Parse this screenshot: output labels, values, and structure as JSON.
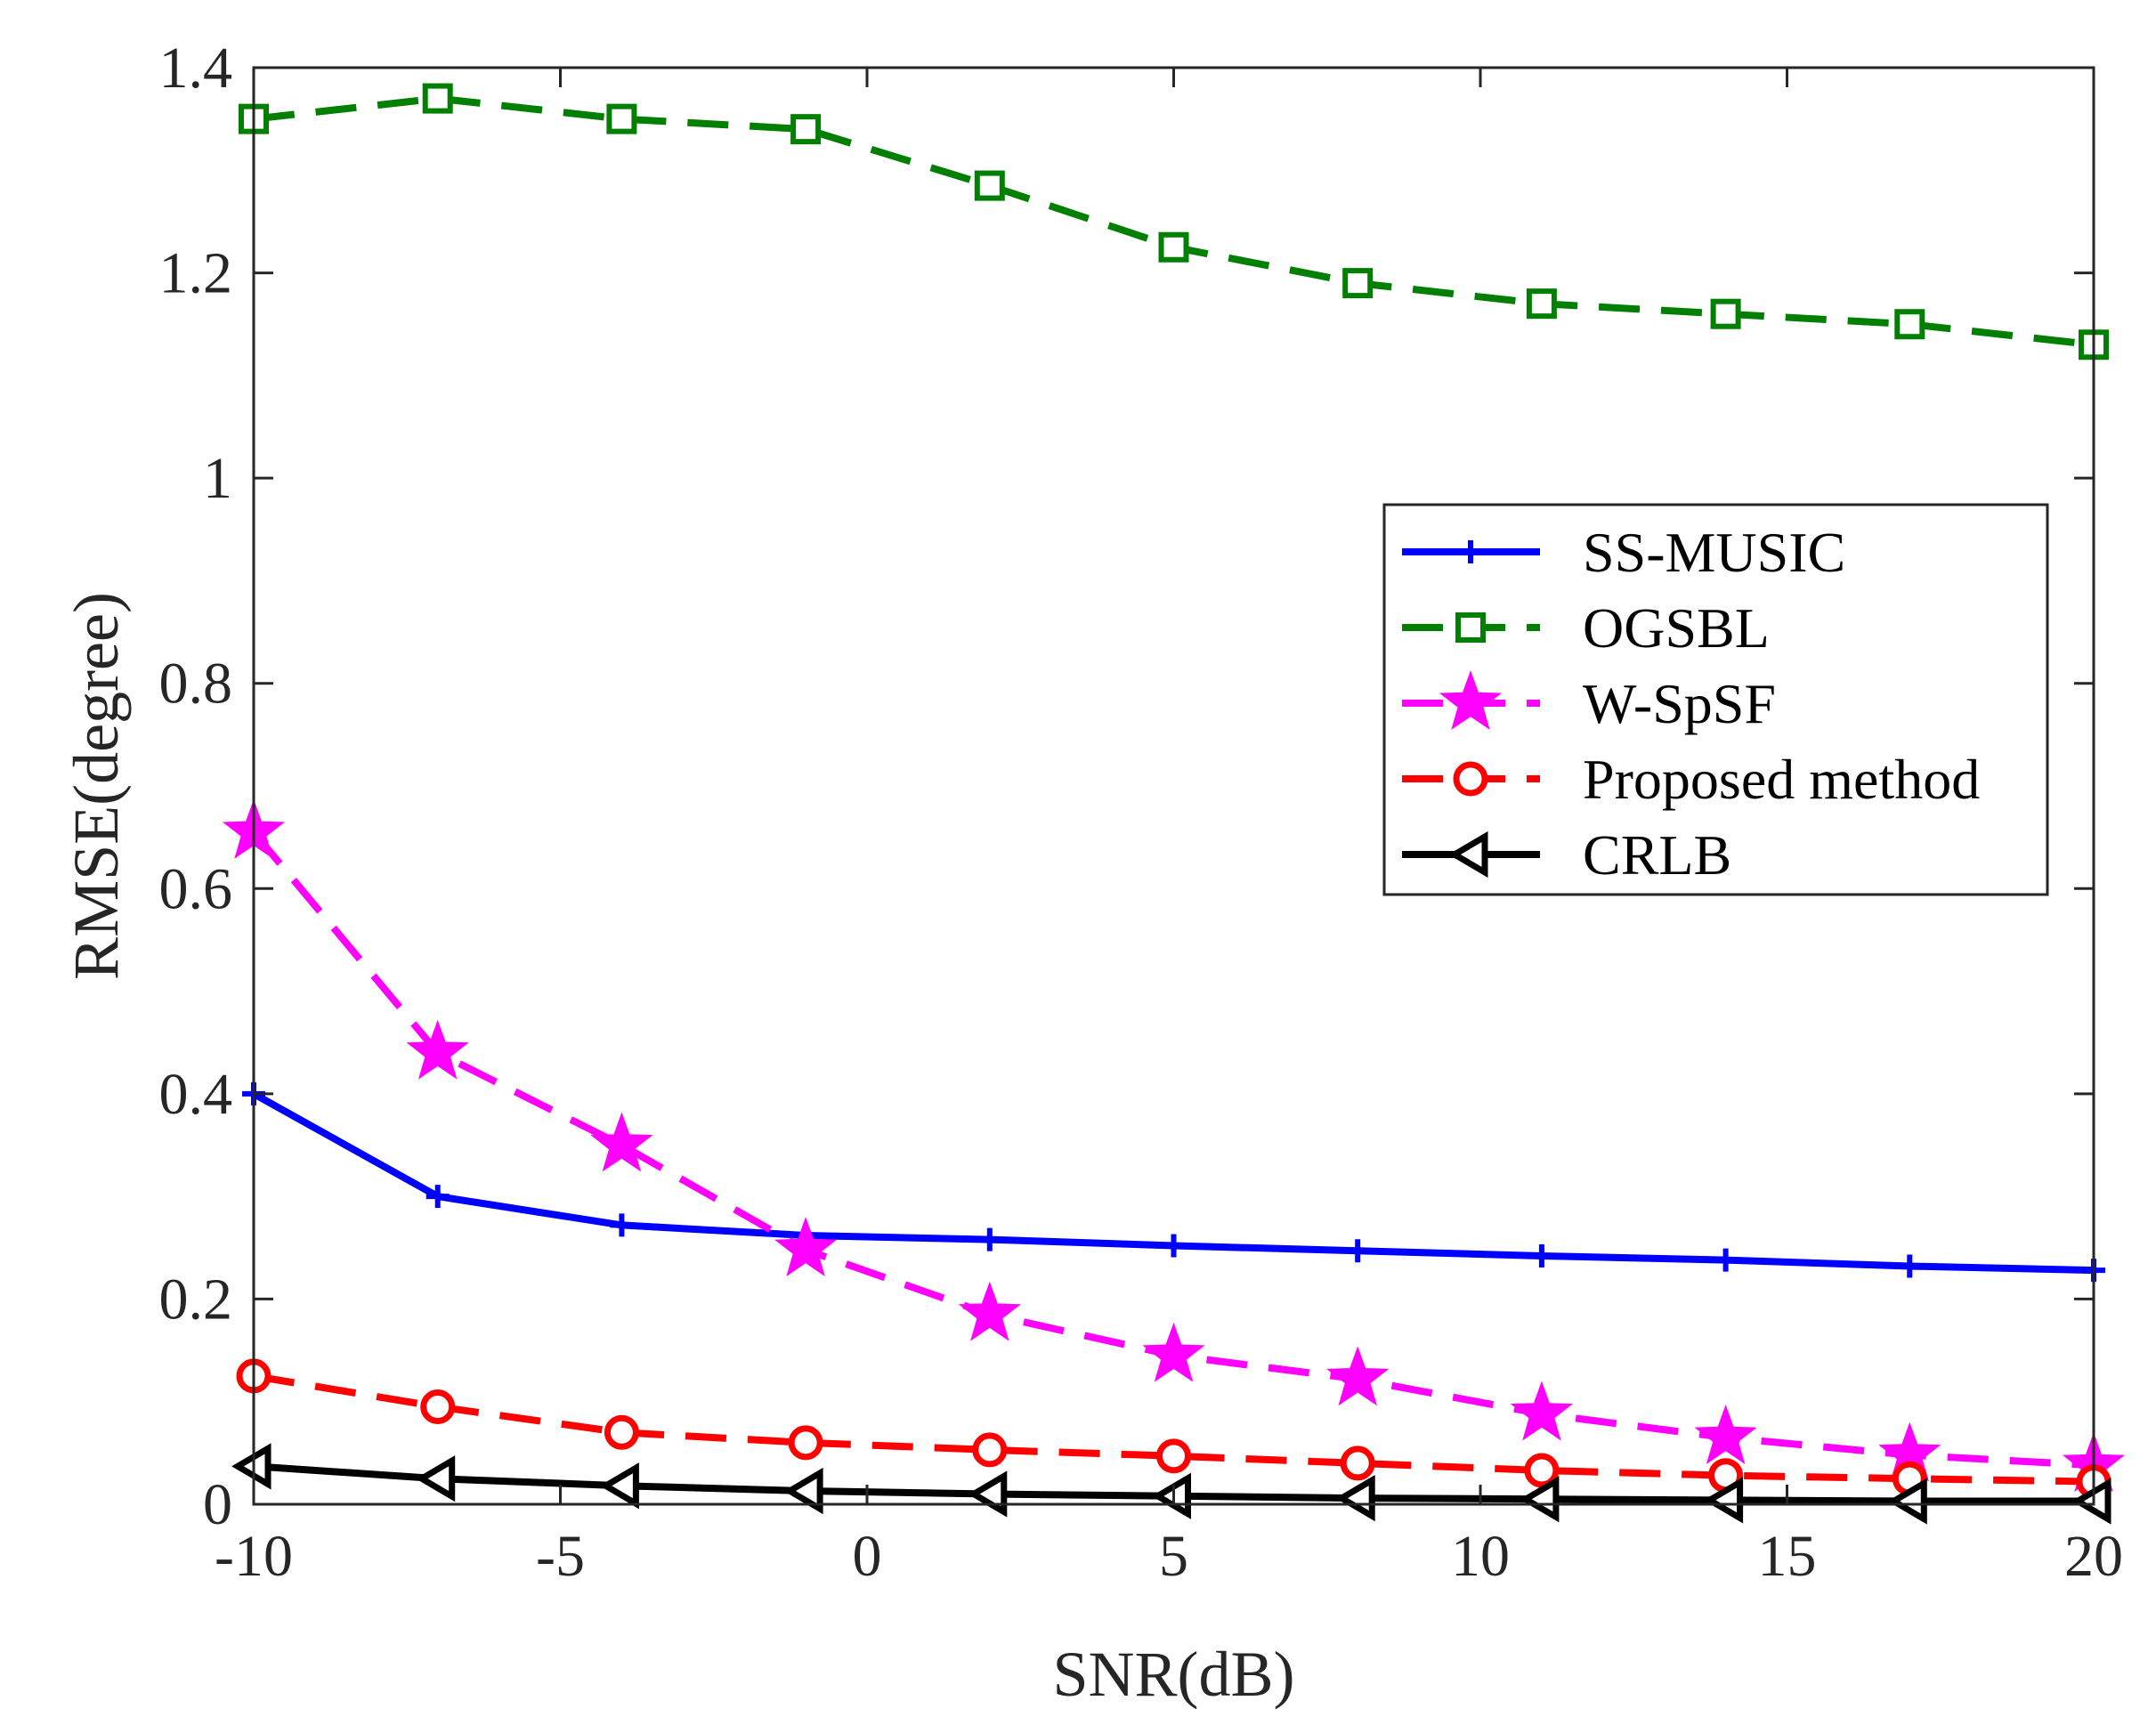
{
  "chart_data": {
    "type": "line",
    "title": "",
    "xlabel": "SNR(dB)",
    "ylabel": "RMSE(degree)",
    "xlim": [
      -10,
      20
    ],
    "ylim": [
      0,
      1.4
    ],
    "xticks": [
      -10,
      -5,
      0,
      5,
      10,
      15,
      20
    ],
    "xtick_labels": [
      "-10",
      "-5",
      "0",
      "5",
      "10",
      "15",
      "20"
    ],
    "yticks": [
      0,
      0.2,
      0.4,
      0.6,
      0.8,
      1.0,
      1.2,
      1.4
    ],
    "ytick_labels": [
      "0",
      "0.2",
      "0.4",
      "0.6",
      "0.8",
      "1",
      "1.2",
      "1.4"
    ],
    "grid": false,
    "legend_position": "center-right",
    "x": [
      -10,
      -7,
      -4,
      -1,
      2,
      5,
      8,
      11,
      14,
      17,
      20
    ],
    "series": [
      {
        "name": "SS-MUSIC",
        "color": "#0000ff",
        "dash": "solid",
        "marker": "plus",
        "values": [
          0.4,
          0.3,
          0.272,
          0.262,
          0.258,
          0.252,
          0.247,
          0.242,
          0.238,
          0.232,
          0.228
        ]
      },
      {
        "name": "OGSBL",
        "color": "#007f00",
        "dash": "dashed",
        "marker": "square",
        "values": [
          1.35,
          1.37,
          1.35,
          1.34,
          1.285,
          1.225,
          1.19,
          1.17,
          1.16,
          1.15,
          1.13
        ]
      },
      {
        "name": "W-SpSF",
        "color": "#ff00ff",
        "dash": "dashed",
        "marker": "star",
        "values": [
          0.655,
          0.44,
          0.35,
          0.248,
          0.185,
          0.145,
          0.122,
          0.088,
          0.065,
          0.048,
          0.038
        ]
      },
      {
        "name": "Proposed method",
        "color": "#ff0000",
        "dash": "dashed",
        "marker": "circle",
        "values": [
          0.125,
          0.095,
          0.07,
          0.06,
          0.053,
          0.047,
          0.04,
          0.033,
          0.028,
          0.025,
          0.022
        ]
      },
      {
        "name": "CRLB",
        "color": "#000000",
        "dash": "solid",
        "marker": "triangle-left",
        "values": [
          0.037,
          0.025,
          0.018,
          0.013,
          0.01,
          0.008,
          0.006,
          0.005,
          0.004,
          0.003,
          0.003
        ]
      }
    ]
  }
}
